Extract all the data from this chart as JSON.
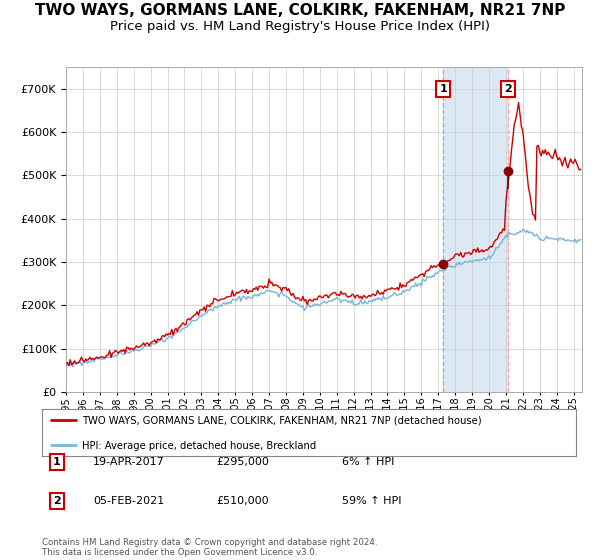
{
  "title": "TWO WAYS, GORMANS LANE, COLKIRK, FAKENHAM, NR21 7NP",
  "subtitle": "Price paid vs. HM Land Registry's House Price Index (HPI)",
  "legend_line1": "TWO WAYS, GORMANS LANE, COLKIRK, FAKENHAM, NR21 7NP (detached house)",
  "legend_line2": "HPI: Average price, detached house, Breckland",
  "transaction1_label": "1",
  "transaction1_date": "19-APR-2017",
  "transaction1_price": 295000,
  "transaction1_pct": "6% ↑ HPI",
  "transaction2_label": "2",
  "transaction2_date": "05-FEB-2021",
  "transaction2_price": 510000,
  "transaction2_pct": "59% ↑ HPI",
  "footnote": "Contains HM Land Registry data © Crown copyright and database right 2024.\nThis data is licensed under the Open Government Licence v3.0.",
  "hpi_line_color": "#7ab5d8",
  "property_line_color": "#cc0000",
  "marker_color": "#8b0000",
  "vline1_color": "#aaaaaa",
  "vline2_color": "#ffaaaa",
  "highlight_color": "#dde8f5",
  "grid_color": "#cccccc",
  "background_color": "#ffffff",
  "title_fontsize": 11,
  "subtitle_fontsize": 9.5,
  "ylim": [
    0,
    750000
  ],
  "yticks": [
    0,
    100000,
    200000,
    300000,
    400000,
    500000,
    600000,
    700000
  ],
  "year_start": 1995,
  "year_end": 2025,
  "hpi_base_years": [
    1995,
    1996,
    1997,
    1998,
    1999,
    2000,
    2001,
    2002,
    2003,
    2004,
    2005,
    2006,
    2007,
    2008,
    2009,
    2010,
    2011,
    2012,
    2013,
    2014,
    2015,
    2016,
    2017,
    2018,
    2019,
    2020,
    2021,
    2022,
    2023,
    2024,
    2025,
    2026
  ],
  "hpi_base_vals": [
    63000,
    68000,
    76000,
    86000,
    94000,
    107000,
    124000,
    147000,
    176000,
    199000,
    213000,
    220000,
    233000,
    222000,
    193000,
    203000,
    213000,
    206000,
    208000,
    218000,
    233000,
    253000,
    276000,
    293000,
    303000,
    308000,
    358000,
    373000,
    358000,
    353000,
    350000,
    350000
  ],
  "prop_base_scale": 1.07
}
